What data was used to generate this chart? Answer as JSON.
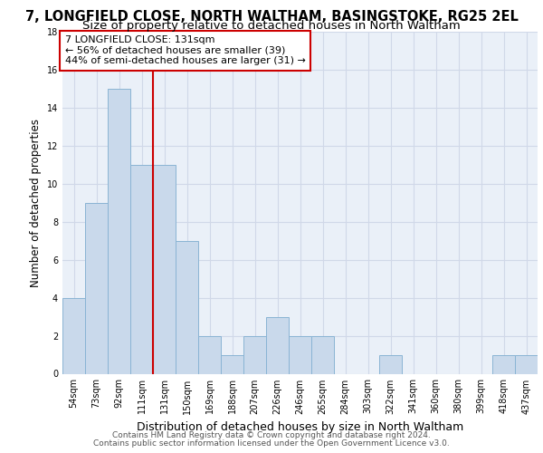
{
  "title1": "7, LONGFIELD CLOSE, NORTH WALTHAM, BASINGSTOKE, RG25 2EL",
  "title2": "Size of property relative to detached houses in North Waltham",
  "xlabel": "Distribution of detached houses by size in North Waltham",
  "ylabel": "Number of detached properties",
  "categories": [
    "54sqm",
    "73sqm",
    "92sqm",
    "111sqm",
    "131sqm",
    "150sqm",
    "169sqm",
    "188sqm",
    "207sqm",
    "226sqm",
    "246sqm",
    "265sqm",
    "284sqm",
    "303sqm",
    "322sqm",
    "341sqm",
    "360sqm",
    "380sqm",
    "399sqm",
    "418sqm",
    "437sqm"
  ],
  "values": [
    4,
    9,
    15,
    11,
    11,
    7,
    2,
    1,
    2,
    3,
    2,
    2,
    0,
    0,
    1,
    0,
    0,
    0,
    0,
    1,
    1
  ],
  "bar_color": "#c9d9eb",
  "bar_edge_color": "#8ab4d4",
  "highlight_index": 4,
  "highlight_line_color": "#cc0000",
  "annotation_box_color": "#cc0000",
  "annotation_text": "7 LONGFIELD CLOSE: 131sqm\n← 56% of detached houses are smaller (39)\n44% of semi-detached houses are larger (31) →",
  "ylim": [
    0,
    18
  ],
  "yticks": [
    0,
    2,
    4,
    6,
    8,
    10,
    12,
    14,
    16,
    18
  ],
  "grid_color": "#d0d8e8",
  "bg_color": "#eaf0f8",
  "footer1": "Contains HM Land Registry data © Crown copyright and database right 2024.",
  "footer2": "Contains public sector information licensed under the Open Government Licence v3.0.",
  "title1_fontsize": 10.5,
  "title2_fontsize": 9.5,
  "annotation_fontsize": 8,
  "tick_fontsize": 7,
  "xlabel_fontsize": 9,
  "ylabel_fontsize": 8.5,
  "footer_fontsize": 6.5
}
